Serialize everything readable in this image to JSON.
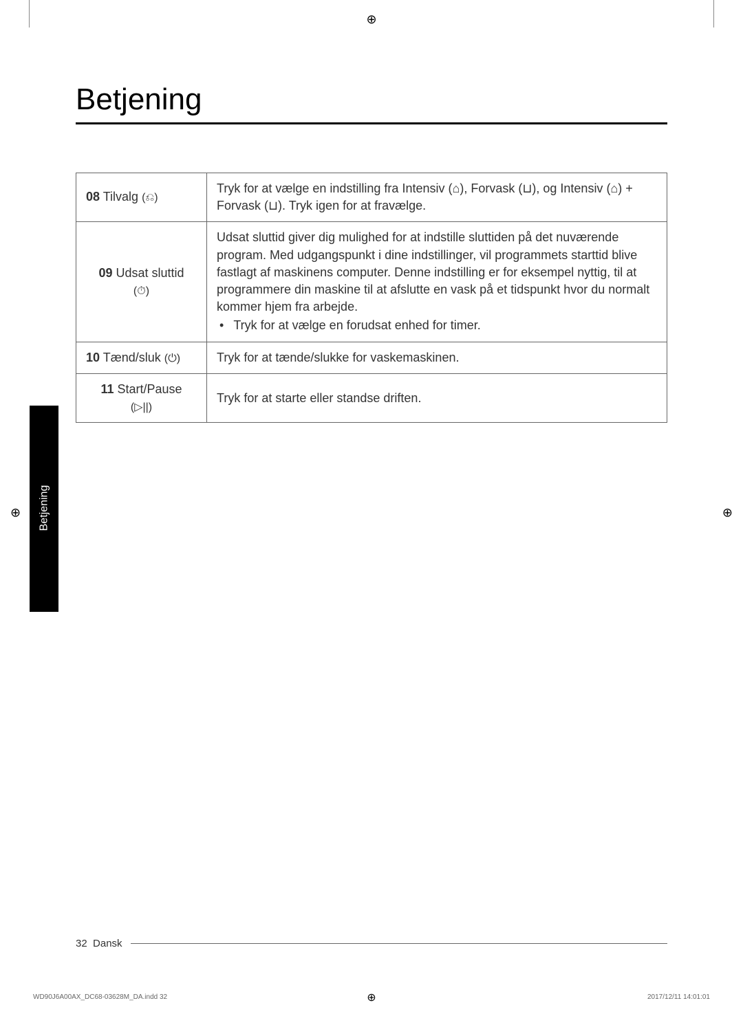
{
  "title": "Betjening",
  "sideTab": "Betjening",
  "rows": [
    {
      "num": "08",
      "label": "Tilvalg",
      "icon": "(⎌)",
      "desc": "Tryk for at vælge en indstilling fra Intensiv (⌂), Forvask (⊔), og Intensiv (⌂) + Forvask (⊔). Tryk igen for at fravælge."
    },
    {
      "num": "09",
      "label": "Udsat sluttid",
      "icon": "(⏱)",
      "desc": "Udsat sluttid giver dig mulighed for at indstille sluttiden på det nuværende program. Med udgangspunkt i dine indstillinger, vil programmets starttid blive fastlagt af maskinens computer. Denne indstilling er for eksempel nyttig, til at programmere din maskine til at afslutte en vask på et tidspunkt hvor du normalt kommer hjem fra arbejde.",
      "bullet": "Tryk for at vælge en forudsat enhed for timer."
    },
    {
      "num": "10",
      "label": "Tænd/sluk",
      "icon": "(⏻)",
      "desc": "Tryk for at tænde/slukke for vaskemaskinen."
    },
    {
      "num": "11",
      "label": "Start/Pause",
      "icon": "(▷||)",
      "desc": "Tryk for at starte eller standse driften."
    }
  ],
  "footer": {
    "pageNum": "32",
    "lang": "Dansk"
  },
  "printInfo": {
    "left": "WD90J6A00AX_DC68-03628M_DA.indd   32",
    "right": "2017/12/11   14:01:01"
  }
}
